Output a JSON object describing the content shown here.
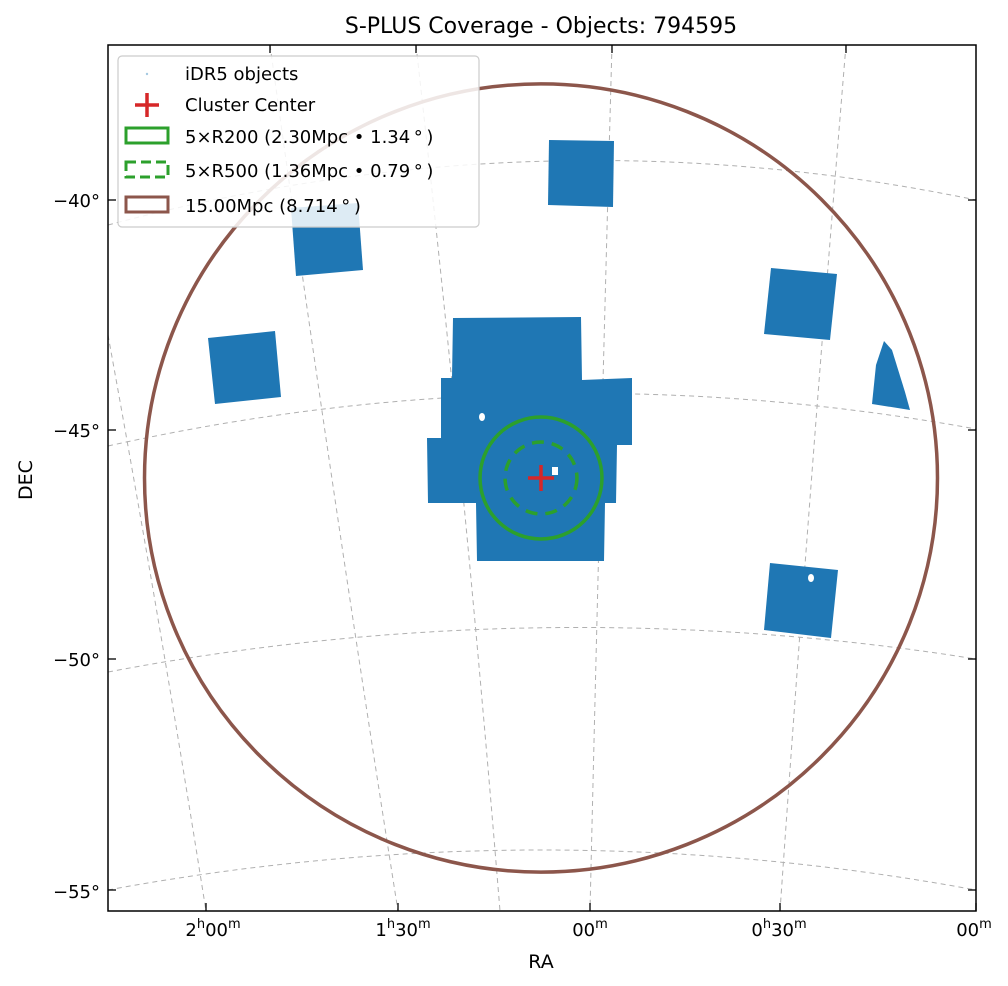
{
  "chart_data": {
    "type": "scatter",
    "projection": "sky map (RA/DEC), curved graticule",
    "title": "S-PLUS Coverage - Objects: 794595",
    "xlabel": "RA",
    "ylabel": "DEC",
    "ra_ticks": [
      {
        "h": "2",
        "m": "00"
      },
      {
        "h": "1",
        "m": "30"
      },
      {
        "h": "",
        "m": "00"
      },
      {
        "h": "0",
        "m": "30"
      },
      {
        "h": "",
        "m": "00"
      }
    ],
    "dec_ticks": [
      "−40°",
      "−45°",
      "−50°",
      "−55°"
    ],
    "dec_values": [
      -40,
      -45,
      -50,
      -55
    ],
    "grid": true,
    "legend_position": "top-left",
    "legend": [
      "iDR5 objects",
      "Cluster Center",
      "5×R200 (2.30Mpc • 1.34$^\\circ$)",
      "5×R500 (1.36Mpc • 0.79$^\\circ$)",
      "15.00Mpc (8.714$^\\circ$)"
    ],
    "legend_display": [
      "iDR5 objects",
      "Cluster Center",
      "5×R200 (2.30Mpc • 1.34 ° )",
      "5×R500 (1.36Mpc • 0.79 ° )",
      "15.00Mpc (8.714 ° )"
    ],
    "object_count": 794595,
    "cluster_center": {
      "dec": -46.0
    },
    "circles": [
      {
        "label": "5×R200",
        "radius_mpc": 2.3,
        "radius_deg": 1.34,
        "style": "solid"
      },
      {
        "label": "5×R500",
        "radius_mpc": 1.36,
        "radius_deg": 0.79,
        "style": "dashed"
      },
      {
        "label": "15.00Mpc",
        "radius_mpc": 15.0,
        "radius_deg": 8.714,
        "style": "solid"
      }
    ],
    "colors": {
      "objects": "#1f77b4",
      "center": "#d62728",
      "r200": "#2ca02c",
      "r500": "#2ca02c",
      "outer": "#8c564b",
      "grid": "#b0b0b0"
    }
  }
}
